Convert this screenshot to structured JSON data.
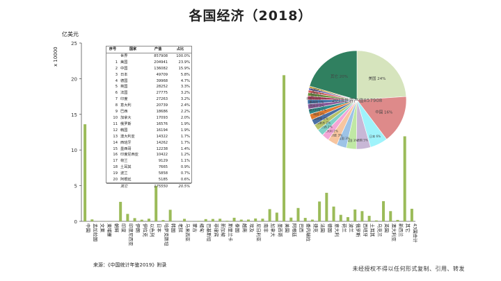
{
  "title": "各国经济（2018）",
  "y_unit": "亿美元",
  "y_multiplier": "x 10000",
  "source": "来源：《中国统计年鉴2019》附录",
  "copyright": "未经授权不得以任何形式复制、引用、转发",
  "table": {
    "headers": [
      "序号",
      "国家",
      "产值",
      "占比"
    ],
    "rows": [
      [
        "",
        "世界",
        "857908",
        "100.0%"
      ],
      [
        "1",
        "美国",
        "204941",
        "23.9%"
      ],
      [
        "2",
        "中国",
        "136082",
        "15.9%"
      ],
      [
        "3",
        "日本",
        "49709",
        "5.8%"
      ],
      [
        "4",
        "德国",
        "39968",
        "4.7%"
      ],
      [
        "5",
        "英国",
        "28252",
        "3.3%"
      ],
      [
        "6",
        "法国",
        "27775",
        "3.2%"
      ],
      [
        "7",
        "印度",
        "27263",
        "3.2%"
      ],
      [
        "8",
        "意大利",
        "20739",
        "2.4%"
      ],
      [
        "9",
        "巴西",
        "18686",
        "2.2%"
      ],
      [
        "10",
        "加拿大",
        "17093",
        "2.0%"
      ],
      [
        "11",
        "俄罗斯",
        "16576",
        "1.9%"
      ],
      [
        "12",
        "韩国",
        "16194",
        "1.9%"
      ],
      [
        "13",
        "澳大利亚",
        "14322",
        "1.7%"
      ],
      [
        "14",
        "西班牙",
        "14262",
        "1.7%"
      ],
      [
        "15",
        "墨西哥",
        "12238",
        "1.4%"
      ],
      [
        "16",
        "印度尼西亚",
        "10422",
        "1.2%"
      ],
      [
        "17",
        "荷兰",
        "9129",
        "1.1%"
      ],
      [
        "18",
        "土耳其",
        "7665",
        "0.9%"
      ],
      [
        "19",
        "波兰",
        "5858",
        "0.7%"
      ],
      [
        "20",
        "阿根廷",
        "5185",
        "0.6%"
      ]
    ],
    "other": [
      "",
      "其它",
      "175550",
      "20.5%"
    ]
  },
  "pie": {
    "center_label": "2018世界产值857908",
    "colors": [
      "#d6e4bd",
      "#de8a8a",
      "#9ff3fb",
      "#c8b7d6",
      "#c0e8a4",
      "#9dc3e6",
      "#f7c59f",
      "#f4a6d6",
      "#7fd1c7",
      "#b6c26a",
      "#4a6fa5",
      "#e07a2e",
      "#2e8b8b",
      "#8a5a9a",
      "#3a6ea5",
      "#b03a5a",
      "#6a8f3a",
      "#d45a5a",
      "#5a5ab0",
      "#c8a030",
      "#308060",
      "#fffcb0"
    ]
  },
  "chart_data": [
    {
      "type": "bar",
      "title": "各国经济（2018）",
      "ylabel": "亿美元 x 10000",
      "ylim": [
        0,
        25
      ],
      "yticks": [
        0,
        5,
        10,
        15,
        20,
        25
      ],
      "categories": [
        "中国",
        "孟加拉国",
        "文莱",
        "柬埔寨",
        "朝鲜",
        "印度",
        "印度尼西亚",
        "伊朗",
        "伊拉克",
        "以色列",
        "日本",
        "哈萨克斯坦",
        "韩国",
        "老挝",
        "马来西亚",
        "蒙古",
        "缅甸",
        "巴基斯坦",
        "菲律宾",
        "新加坡",
        "斯里兰卡",
        "泰国",
        "越南",
        "埃及",
        "尼日利亚",
        "南非",
        "加拿大",
        "墨西哥",
        "美国",
        "阿根廷",
        "巴西",
        "委内瑞拉",
        "捷克",
        "法国",
        "德国",
        "意大利",
        "荷兰",
        "波兰",
        "俄罗斯",
        "西班牙",
        "土耳其",
        "乌克兰",
        "英国",
        "澳大利亚",
        "新西兰",
        "其它",
        "43国合计"
      ],
      "values": [
        13.61,
        0.27,
        0.01,
        0.02,
        0.0,
        2.73,
        1.04,
        0.45,
        0.23,
        0.37,
        4.97,
        0.18,
        1.62,
        0.02,
        0.35,
        0.01,
        0.07,
        0.31,
        0.33,
        0.36,
        0.09,
        0.5,
        0.24,
        0.25,
        0.4,
        0.37,
        1.71,
        1.22,
        20.49,
        0.52,
        1.87,
        0.48,
        0.24,
        2.78,
        4.0,
        2.07,
        0.91,
        0.59,
        1.66,
        1.43,
        0.77,
        0.13,
        2.83,
        1.43,
        0.2,
        11.92,
        1.76
      ]
    },
    {
      "type": "pie",
      "title": "2018世界产值857908",
      "categories": [
        "美国",
        "中国",
        "日本",
        "德国",
        "英国",
        "法国",
        "印度",
        "意大利",
        "巴西",
        "加拿大",
        "俄罗斯",
        "韩国",
        "澳大利亚",
        "西班牙",
        "墨西哥",
        "印度尼西亚",
        "荷兰",
        "土耳其",
        "波兰",
        "阿根廷",
        "其它"
      ],
      "values": [
        204941,
        136082,
        49709,
        39968,
        28252,
        27775,
        27263,
        20739,
        18686,
        17093,
        16576,
        16194,
        14322,
        14262,
        12238,
        10422,
        9129,
        7665,
        5858,
        5185,
        175550
      ],
      "labels": [
        "美国 24%",
        "中国 16%",
        "日本 6%",
        "德国 5%",
        "英国 3%",
        "法国 3%",
        "印度 3%",
        "意大利 2%",
        "巴西 2%",
        "加拿大 2%",
        "俄罗斯 2%",
        "韩国 2%",
        "澳大利亚 2%",
        "西班牙 2%",
        "墨西哥 1%",
        "印度尼西亚 1%",
        "荷兰 1%",
        "土耳其 1%",
        "波兰 1%",
        "阿根廷 1%",
        "其它 20%"
      ]
    }
  ]
}
